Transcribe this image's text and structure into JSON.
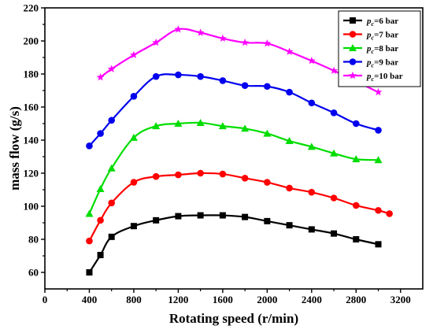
{
  "chart_data": {
    "type": "line",
    "title": "",
    "xlabel": "Rotating speed (r/min)",
    "ylabel": "mass flow (g/s)",
    "xlim": [
      0,
      3400
    ],
    "ylim": [
      50,
      220
    ],
    "xticks": [
      0,
      400,
      800,
      1200,
      1600,
      2000,
      2400,
      2800,
      3200
    ],
    "yticks": [
      60,
      80,
      100,
      120,
      140,
      160,
      180,
      200,
      220
    ],
    "xtick_labels": [
      "0",
      "400",
      "800",
      "1200",
      "1600",
      "2000",
      "2400",
      "2800",
      "3200"
    ],
    "ytick_labels": [
      "60",
      "80",
      "100",
      "120",
      "140",
      "160",
      "180",
      "200",
      "220"
    ],
    "grid": false,
    "legend_position": "top-right",
    "series": [
      {
        "name": "p",
        "name_sub": "c",
        "name_suffix": "=6 bar",
        "color": "#000000",
        "marker": "square",
        "x": [
          400,
          500,
          600,
          800,
          1000,
          1200,
          1400,
          1600,
          1800,
          2000,
          2200,
          2400,
          2600,
          2800,
          3000
        ],
        "y": [
          60,
          70.5,
          81.5,
          88,
          91.5,
          94,
          94.5,
          94.5,
          93.5,
          91,
          88.5,
          86,
          83.5,
          80,
          77
        ]
      },
      {
        "name": "p",
        "name_sub": "c",
        "name_suffix": "=7 bar",
        "color": "#ff0000",
        "marker": "circle",
        "x": [
          400,
          500,
          600,
          800,
          1000,
          1200,
          1400,
          1600,
          1800,
          2000,
          2200,
          2400,
          2600,
          2800,
          3000,
          3100
        ],
        "y": [
          79,
          91.5,
          102,
          114.5,
          118,
          119,
          120,
          119.5,
          117,
          114.5,
          111,
          108.5,
          105,
          100.5,
          97.5,
          95.5
        ]
      },
      {
        "name": "p",
        "name_sub": "c",
        "name_suffix": "=8 bar",
        "color": "#00dd00",
        "marker": "triangle",
        "x": [
          400,
          500,
          600,
          800,
          1000,
          1200,
          1400,
          1600,
          1800,
          2000,
          2200,
          2400,
          2600,
          2800,
          3000
        ],
        "y": [
          95.5,
          110.5,
          123,
          141.5,
          148.5,
          150,
          150.5,
          148.5,
          147,
          144,
          139.5,
          136,
          132,
          128.5,
          128
        ]
      },
      {
        "name": "p",
        "name_sub": "c",
        "name_suffix": "=9 bar",
        "color": "#0000ee",
        "marker": "circle",
        "x": [
          400,
          500,
          600,
          800,
          1000,
          1200,
          1400,
          1600,
          1800,
          2000,
          2200,
          2400,
          2600,
          2800,
          3000
        ],
        "y": [
          136.5,
          144,
          152,
          166.5,
          178.5,
          179.5,
          178.5,
          176,
          173,
          172.5,
          169,
          162.5,
          156.5,
          150,
          146
        ]
      },
      {
        "name": "p",
        "name_sub": "c",
        "name_suffix": "=10 bar",
        "color": "#ff00ff",
        "marker": "star",
        "x": [
          500,
          600,
          800,
          1000,
          1200,
          1400,
          1600,
          1800,
          2000,
          2200,
          2400,
          2600,
          2800,
          3000
        ],
        "y": [
          178,
          183,
          191.5,
          199,
          207,
          205,
          201.5,
          199,
          198.5,
          193.5,
          188,
          182,
          175.5,
          169
        ]
      }
    ]
  }
}
